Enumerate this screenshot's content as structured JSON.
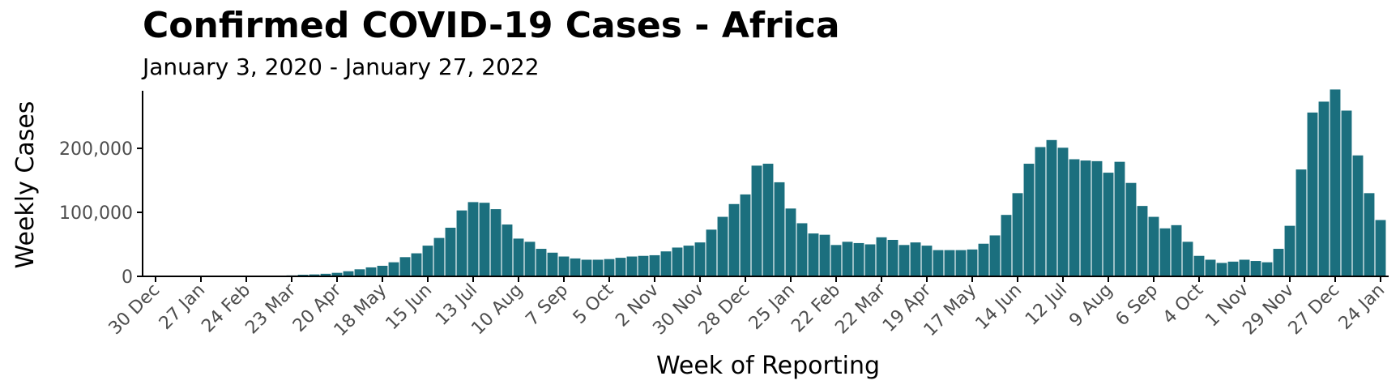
{
  "chart_data": {
    "type": "bar",
    "title": "Confirmed COVID-19 Cases - Africa",
    "subtitle": "January 3, 2020 - January 27, 2022",
    "xlabel": "Week of Reporting",
    "ylabel": "Weekly Cases",
    "bar_color": "#1b6f7e",
    "ylim": [
      0,
      290000
    ],
    "y_ticks": [
      0,
      100000,
      200000
    ],
    "y_tick_labels": [
      "0",
      "100,000",
      "200,000"
    ],
    "x_tick_labels": [
      "30 Dec",
      "27 Jan",
      "24 Feb",
      "23 Mar",
      "20 Apr",
      "18 May",
      "15 Jun",
      "13 Jul",
      "10 Aug",
      "7 Sep",
      "5 Oct",
      "2 Nov",
      "30 Nov",
      "28 Dec",
      "25 Jan",
      "22 Feb",
      "22 Mar",
      "19 Apr",
      "17 May",
      "14 Jun",
      "12 Jul",
      "9 Aug",
      "6 Sep",
      "4 Oct",
      "1 Nov",
      "29 Nov",
      "27 Dec",
      "24 Jan"
    ],
    "x_tick_week_index": [
      0,
      4,
      8,
      12,
      16,
      20,
      24,
      28,
      32,
      36,
      40,
      44,
      48,
      52,
      56,
      60,
      64,
      68,
      72,
      76,
      80,
      84,
      88,
      92,
      96,
      100,
      104,
      108
    ],
    "week_starts": [
      "2019-12-30",
      "2020-01-06",
      "2020-01-13",
      "2020-01-20",
      "2020-01-27",
      "2020-02-03",
      "2020-02-10",
      "2020-02-17",
      "2020-02-24",
      "2020-03-02",
      "2020-03-09",
      "2020-03-16",
      "2020-03-23",
      "2020-03-30",
      "2020-04-06",
      "2020-04-13",
      "2020-04-20",
      "2020-04-27",
      "2020-05-04",
      "2020-05-11",
      "2020-05-18",
      "2020-05-25",
      "2020-06-01",
      "2020-06-08",
      "2020-06-15",
      "2020-06-22",
      "2020-06-29",
      "2020-07-06",
      "2020-07-13",
      "2020-07-20",
      "2020-07-27",
      "2020-08-03",
      "2020-08-10",
      "2020-08-17",
      "2020-08-24",
      "2020-08-31",
      "2020-09-07",
      "2020-09-14",
      "2020-09-21",
      "2020-09-28",
      "2020-10-05",
      "2020-10-12",
      "2020-10-19",
      "2020-10-26",
      "2020-11-02",
      "2020-11-09",
      "2020-11-16",
      "2020-11-23",
      "2020-11-30",
      "2020-12-07",
      "2020-12-14",
      "2020-12-21",
      "2020-12-28",
      "2021-01-04",
      "2021-01-11",
      "2021-01-18",
      "2021-01-25",
      "2021-02-01",
      "2021-02-08",
      "2021-02-15",
      "2021-02-22",
      "2021-03-01",
      "2021-03-08",
      "2021-03-15",
      "2021-03-22",
      "2021-03-29",
      "2021-04-05",
      "2021-04-12",
      "2021-04-19",
      "2021-04-26",
      "2021-05-03",
      "2021-05-10",
      "2021-05-17",
      "2021-05-24",
      "2021-05-31",
      "2021-06-07",
      "2021-06-14",
      "2021-06-21",
      "2021-06-28",
      "2021-07-05",
      "2021-07-12",
      "2021-07-19",
      "2021-07-26",
      "2021-08-02",
      "2021-08-09",
      "2021-08-16",
      "2021-08-23",
      "2021-08-30",
      "2021-09-06",
      "2021-09-13",
      "2021-09-20",
      "2021-09-27",
      "2021-10-04",
      "2021-10-11",
      "2021-10-18",
      "2021-10-25",
      "2021-11-01",
      "2021-11-08",
      "2021-11-15",
      "2021-11-22",
      "2021-11-29",
      "2021-12-06",
      "2021-12-13",
      "2021-12-20",
      "2021-12-27",
      "2022-01-03",
      "2022-01-10",
      "2022-01-17",
      "2022-01-24"
    ],
    "values": [
      0,
      0,
      0,
      0,
      0,
      0,
      0,
      0,
      100,
      200,
      500,
      1000,
      1500,
      2500,
      3000,
      4000,
      5500,
      8000,
      11000,
      14000,
      16500,
      22000,
      30000,
      36000,
      48000,
      60000,
      76000,
      103000,
      116000,
      115000,
      105000,
      81000,
      59000,
      54000,
      43000,
      37000,
      31000,
      28000,
      26000,
      26000,
      27000,
      29000,
      31000,
      32000,
      33000,
      39000,
      45000,
      48000,
      53000,
      73000,
      93000,
      113000,
      128000,
      173000,
      176000,
      147000,
      106000,
      83000,
      67000,
      65000,
      49000,
      54000,
      52000,
      50000,
      61000,
      57000,
      49000,
      53000,
      48000,
      41000,
      41000,
      41000,
      42000,
      51000,
      64000,
      96000,
      130000,
      176000,
      202000,
      213000,
      201000,
      183000,
      181000,
      180000,
      162000,
      179000,
      146000,
      110000,
      93000,
      75000,
      80000,
      54000,
      32000,
      26000,
      21000,
      23000,
      26000,
      24000,
      22000,
      43000,
      79000,
      167000,
      256000,
      273000,
      292000,
      259000,
      189000,
      130000,
      88000
    ]
  }
}
